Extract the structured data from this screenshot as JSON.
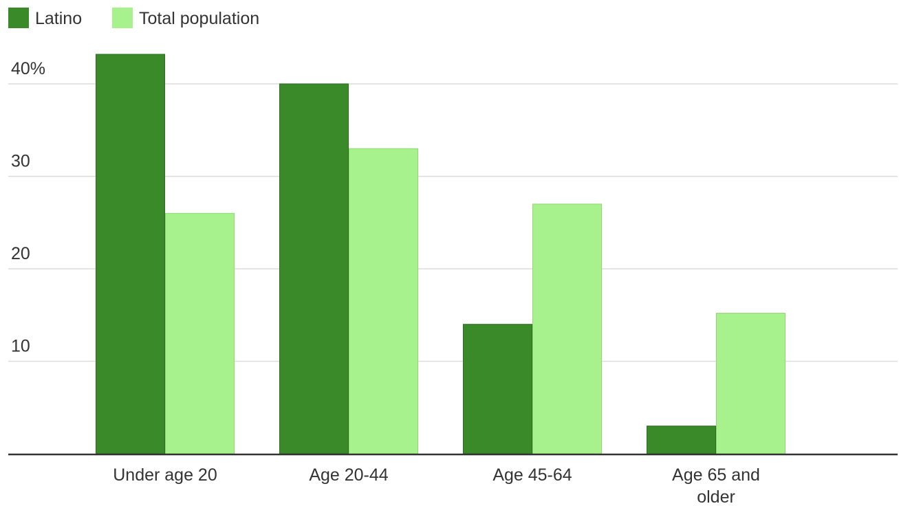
{
  "chart_data": {
    "type": "bar",
    "title": "",
    "xlabel": "",
    "ylabel": "",
    "categories": [
      [
        "Under age 20"
      ],
      [
        "Age 20-44"
      ],
      [
        "Age 45-64"
      ],
      [
        "Age 65 and",
        "older"
      ]
    ],
    "series": [
      {
        "name": "Latino",
        "color": "#3a8a2a",
        "values": [
          43.2,
          40,
          14,
          3
        ]
      },
      {
        "name": "Total population",
        "color": "#a8f28e",
        "values": [
          26,
          33,
          27,
          15.2
        ]
      }
    ],
    "ylim": [
      0,
      40
    ],
    "yticks": [
      {
        "value": 40,
        "label": "40%"
      },
      {
        "value": 30,
        "label": "30"
      },
      {
        "value": 20,
        "label": "20"
      },
      {
        "value": 10,
        "label": "10"
      }
    ],
    "grid": true,
    "legend": "top-left"
  }
}
